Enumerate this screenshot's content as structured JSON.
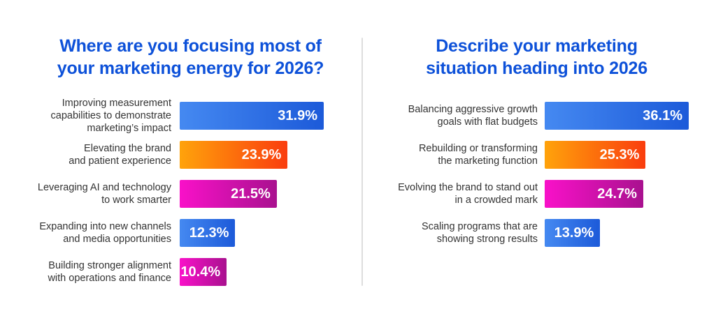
{
  "page": {
    "background": "#ffffff",
    "title_color": "#0d51d9",
    "label_color": "#333333",
    "divider_color": "#dedede"
  },
  "palette": {
    "blue": [
      "#4589F1",
      "#1C5AD9"
    ],
    "orange": [
      "#FFA30B",
      "#FA3D0E"
    ],
    "magenta": [
      "#F911C9",
      "#A9118F"
    ]
  },
  "chart_data": [
    {
      "type": "bar",
      "orientation": "horizontal",
      "title": "Where are you focusing most of your marketing energy for 2026?",
      "title_display": "Where are you focusing most of\nyour marketing energy for 2026?",
      "categories": [
        "Improving measurement capabilities to demonstrate marketing’s impact",
        "Elevating the brand and patient experience",
        "Leveraging AI and technology to work smarter",
        "Expanding into new channels and media opportunities",
        "Building stronger alignment with operations and finance"
      ],
      "values": [
        31.9,
        23.9,
        21.5,
        12.3,
        10.4
      ],
      "value_labels": [
        "31.9%",
        "23.9%",
        "21.5%",
        "12.3%",
        "10.4%"
      ],
      "xlim": [
        0,
        31.9
      ],
      "scale_max": 31.9,
      "grid": false,
      "legend": false,
      "rows": [
        {
          "label_lines": [
            "Improving measurement",
            "capabilities to demonstrate",
            "marketing’s impact"
          ],
          "value": 31.9,
          "value_label": "31.9%",
          "color": "blue"
        },
        {
          "label_lines": [
            "Elevating the brand",
            "and patient experience"
          ],
          "value": 23.9,
          "value_label": "23.9%",
          "color": "orange"
        },
        {
          "label_lines": [
            "Leveraging AI and technology",
            "to work smarter"
          ],
          "value": 21.5,
          "value_label": "21.5%",
          "color": "magenta"
        },
        {
          "label_lines": [
            "Expanding into new channels",
            "and media opportunities"
          ],
          "value": 12.3,
          "value_label": "12.3%",
          "color": "blue"
        },
        {
          "label_lines": [
            "Building stronger alignment",
            "with operations and finance"
          ],
          "value": 10.4,
          "value_label": "10.4%",
          "color": "magenta"
        }
      ]
    },
    {
      "type": "bar",
      "orientation": "horizontal",
      "title": "Describe your marketing situation heading into 2026",
      "title_display": "Describe your marketing\nsituation heading into 2026",
      "categories": [
        "Balancing aggressive growth goals with flat budgets",
        "Rebuilding or transforming the marketing function",
        "Evolving the brand to stand out in a crowded mark",
        "Scaling programs that are showing strong results"
      ],
      "values": [
        36.1,
        25.3,
        24.7,
        13.9
      ],
      "value_labels": [
        "36.1%",
        "25.3%",
        "24.7%",
        "13.9%"
      ],
      "xlim": [
        0,
        36.1
      ],
      "scale_max": 36.1,
      "grid": false,
      "legend": false,
      "rows": [
        {
          "label_lines": [
            "Balancing aggressive growth",
            "goals with flat budgets"
          ],
          "value": 36.1,
          "value_label": "36.1%",
          "color": "blue"
        },
        {
          "label_lines": [
            "Rebuilding or transforming",
            "the marketing function"
          ],
          "value": 25.3,
          "value_label": "25.3%",
          "color": "orange"
        },
        {
          "label_lines": [
            "Evolving the brand to stand out",
            "in a crowded mark"
          ],
          "value": 24.7,
          "value_label": "24.7%",
          "color": "magenta"
        },
        {
          "label_lines": [
            "Scaling programs that are",
            "showing strong results"
          ],
          "value": 13.9,
          "value_label": "13.9%",
          "color": "blue"
        }
      ]
    }
  ]
}
